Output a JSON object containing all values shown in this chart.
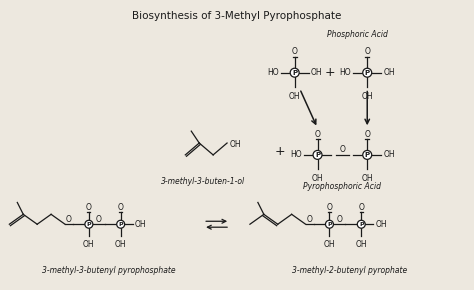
{
  "title": "Biosynthesis of 3-Methyl Pyrophosphate",
  "title_fontsize": 7.5,
  "bg_color": "#ede8df",
  "text_color": "#1a1a1a",
  "labels": {
    "phosphoric_acid": "Phosphoric Acid",
    "pyrophosphoric_acid": "Pyrophosphoric Acid",
    "mol1": "3-methyl-3-buten-1-ol",
    "mol2": "3-methyl-3-butenyl pyrophosphate",
    "mol3": "3-methyl-2-butenyl pyrophate"
  },
  "figsize": [
    4.74,
    2.9
  ],
  "dpi": 100
}
